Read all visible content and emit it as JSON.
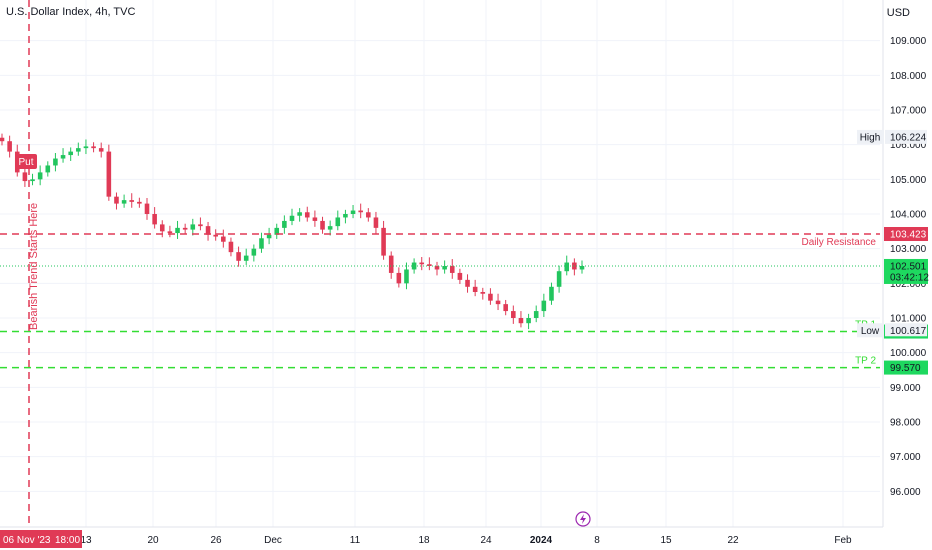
{
  "header": {
    "title": "U.S. Dollar Index, 4h, TVC",
    "currency": "USD"
  },
  "colors": {
    "up": "#22c55e",
    "down": "#e03a56",
    "resistance": "#e03a56",
    "tp": "#33dd33",
    "grid": "#f0f3fa",
    "text": "#131722"
  },
  "chart_data": {
    "type": "line",
    "title": "U.S. Dollar Index, 4h, TVC",
    "ylim": [
      95.4,
      109.8
    ],
    "y_ticks": [
      "109.000",
      "108.000",
      "107.000",
      "106.000",
      "105.000",
      "104.000",
      "103.000",
      "102.000",
      "101.000",
      "100.000",
      "99.000",
      "98.000",
      "97.000",
      "96.000"
    ],
    "x_ticks": [
      "13",
      "20",
      "26",
      "Dec",
      "11",
      "18",
      "24",
      "2024",
      "8",
      "15",
      "22",
      "Feb"
    ],
    "grid": true,
    "series": [
      {
        "values": [
          106.1,
          105.8,
          105.2,
          104.95,
          105.0,
          105.2,
          105.4,
          105.6,
          105.7,
          105.8,
          105.9,
          105.95,
          105.9,
          105.8,
          104.5,
          104.3,
          104.4,
          104.35,
          104.3,
          104.0,
          103.7,
          103.5,
          103.45,
          103.6,
          103.55,
          103.7,
          103.65,
          103.4,
          103.35,
          103.2,
          102.9,
          102.65,
          102.8,
          103.0,
          103.3,
          103.4,
          103.6,
          103.8,
          103.95,
          104.05,
          103.9,
          103.8,
          103.55,
          103.65,
          103.9,
          104.0,
          104.1,
          104.05,
          103.9,
          103.6,
          102.8,
          102.3,
          102.0,
          102.4,
          102.6,
          102.55,
          102.5,
          102.4,
          102.5,
          102.3,
          102.1,
          101.9,
          101.75,
          101.7,
          101.5,
          101.4,
          101.2,
          101.0,
          100.85,
          101.0,
          101.2,
          101.5,
          101.9,
          102.35,
          102.6,
          102.4,
          102.5
        ]
      }
    ],
    "annotations": {
      "high_label": "High",
      "high_value": "106.224",
      "low_label": "Low",
      "low_value": "100.617",
      "resistance_label": "Daily Resistance",
      "resistance_value": "103.423",
      "current_price": "102.501",
      "countdown": "03:42:12",
      "tp1_label": "TP 1",
      "tp1_value": "100.609",
      "tp2_label": "TP 2",
      "tp2_value": "99.570",
      "trend_label": "Bearish Trend Starts Here",
      "put_label": "Put",
      "cursor_date": "06 Nov '23",
      "cursor_time": "18:00"
    }
  }
}
